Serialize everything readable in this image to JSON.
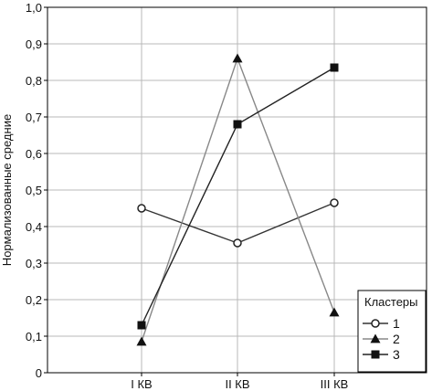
{
  "chart_data": {
    "type": "line",
    "ylabel": "Нормализованные средние",
    "ylim": [
      0,
      1.0
    ],
    "yticks": [
      "0",
      "0,1",
      "0,2",
      "0,3",
      "0,4",
      "0,5",
      "0,6",
      "0,7",
      "0,8",
      "0,9",
      "1,0"
    ],
    "categories": [
      "I КВ",
      "II КВ",
      "III КВ"
    ],
    "grid": true,
    "legend": {
      "title": "Кластеры",
      "position": "bottom-right"
    },
    "series": [
      {
        "name": "1",
        "marker": "circle-open",
        "color": "#333333",
        "values": [
          0.45,
          0.355,
          0.465
        ]
      },
      {
        "name": "2",
        "marker": "triangle",
        "color": "#888888",
        "values": [
          0.085,
          0.86,
          0.165
        ]
      },
      {
        "name": "3",
        "marker": "square",
        "color": "#222222",
        "values": [
          0.13,
          0.68,
          0.835
        ]
      }
    ]
  }
}
